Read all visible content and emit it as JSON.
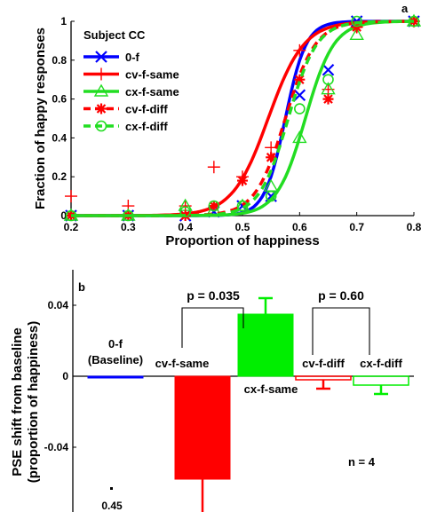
{
  "chart_data": [
    {
      "panel_label": "a",
      "type": "line",
      "xlabel": "Proportion of happiness",
      "ylabel": "Fraction of happy responses",
      "xlim": [
        0.2,
        0.8
      ],
      "ylim": [
        0,
        1
      ],
      "x_ticks": [
        "0.2",
        "0.3",
        "0.4",
        "0.5",
        "0.6",
        "0.7",
        "0.8"
      ],
      "y_ticks": [
        "0",
        "0.2",
        "0.4",
        "0.6",
        "0.8",
        "1"
      ],
      "legend_title": "Subject CC",
      "legend_position": "top-left",
      "series": [
        {
          "name": "0-f",
          "color": "#0000ff",
          "line_style": "solid",
          "marker": "x",
          "x": [
            0.2,
            0.3,
            0.4,
            0.45,
            0.5,
            0.55,
            0.6,
            0.65,
            0.7,
            0.8
          ],
          "y": [
            0.0,
            0.0,
            0.0,
            0.02,
            0.05,
            0.1,
            0.62,
            0.75,
            1.0,
            1.0
          ],
          "fit_pse": 0.575,
          "fit_slope": 55
        },
        {
          "name": "cv-f-same",
          "color": "#ff0000",
          "line_style": "solid",
          "marker": "+",
          "x": [
            0.2,
            0.3,
            0.4,
            0.45,
            0.5,
            0.55,
            0.6,
            0.65,
            0.7,
            0.8
          ],
          "y": [
            0.1,
            0.05,
            0.05,
            0.25,
            0.2,
            0.35,
            0.85,
            0.65,
            0.97,
            1.0
          ],
          "fit_pse": 0.545,
          "fit_slope": 32
        },
        {
          "name": "cx-f-same",
          "color": "#22dd22",
          "line_style": "solid",
          "marker": "triangle",
          "x": [
            0.2,
            0.3,
            0.4,
            0.45,
            0.5,
            0.55,
            0.6,
            0.65,
            0.7,
            0.8
          ],
          "y": [
            0.0,
            0.0,
            0.05,
            0.03,
            0.05,
            0.15,
            0.4,
            0.65,
            0.93,
            1.0
          ],
          "fit_pse": 0.61,
          "fit_slope": 40
        },
        {
          "name": "cv-f-diff",
          "color": "#ff0000",
          "line_style": "dashed",
          "marker": "asterisk",
          "x": [
            0.2,
            0.3,
            0.4,
            0.45,
            0.5,
            0.55,
            0.6,
            0.65,
            0.7,
            0.8
          ],
          "y": [
            0.0,
            0.0,
            0.0,
            0.05,
            0.18,
            0.3,
            0.7,
            0.6,
            0.97,
            1.0
          ],
          "fit_pse": 0.575,
          "fit_slope": 38
        },
        {
          "name": "cx-f-diff",
          "color": "#22dd22",
          "line_style": "dashed",
          "marker": "circle",
          "x": [
            0.2,
            0.3,
            0.4,
            0.45,
            0.5,
            0.55,
            0.6,
            0.65,
            0.7,
            0.8
          ],
          "y": [
            0.0,
            0.0,
            0.02,
            0.05,
            0.05,
            0.1,
            0.55,
            0.7,
            1.0,
            1.0
          ],
          "fit_pse": 0.58,
          "fit_slope": 40
        }
      ]
    },
    {
      "panel_label": "b",
      "type": "bar",
      "ylabel_line1": "PSE shift from baseline",
      "ylabel_line2": "(proportion of happiness)",
      "ylim": [
        -0.09,
        0.06
      ],
      "y_ticks": [
        "0.04",
        "0",
        "-0.04",
        "-0.08"
      ],
      "bottom_label": "0.45",
      "annotation_n": "n = 4",
      "bars": [
        {
          "name": "0-f",
          "sublabel": "(Baseline)",
          "value": 0.0,
          "error": 0.0,
          "color": "#0000ff",
          "fill": "solid"
        },
        {
          "name": "cv-f-same",
          "value": -0.058,
          "error": 0.021,
          "color": "#ff0000",
          "fill": "solid"
        },
        {
          "name": "cx-f-same",
          "value": 0.035,
          "error": 0.009,
          "color": "#00ee00",
          "fill": "solid"
        },
        {
          "name": "cv-f-diff",
          "value": -0.002,
          "error": 0.005,
          "color": "#ff0000",
          "fill": "outline"
        },
        {
          "name": "cx-f-diff",
          "value": -0.005,
          "error": 0.005,
          "color": "#00ee00",
          "fill": "outline"
        }
      ],
      "comparisons": [
        {
          "label": "p = 0.035",
          "between": [
            "cv-f-same",
            "cx-f-same"
          ]
        },
        {
          "label": "p = 0.60",
          "between": [
            "cv-f-diff",
            "cx-f-diff"
          ]
        }
      ]
    }
  ]
}
